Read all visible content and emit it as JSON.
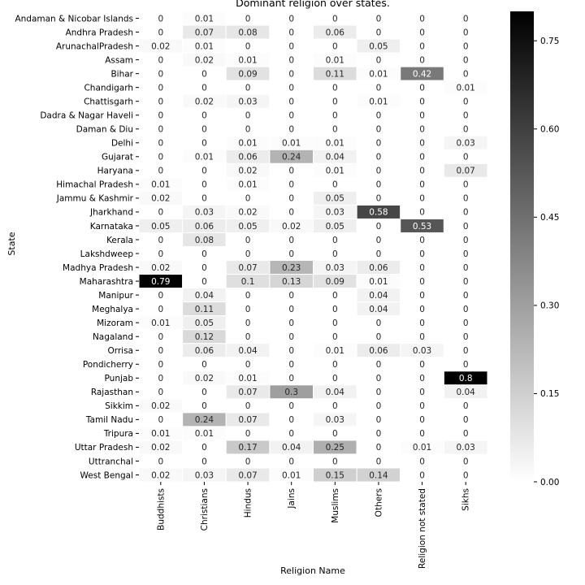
{
  "chart_data": {
    "type": "heatmap",
    "title": "Dominant religion over states.",
    "xlabel": "Religion Name",
    "ylabel": "State",
    "colorbar": {
      "min": 0.0,
      "max": 0.8,
      "ticks": [
        "0.00",
        "0.15",
        "0.30",
        "0.45",
        "0.60",
        "0.75"
      ],
      "tick_values": [
        0,
        0.15,
        0.3,
        0.45,
        0.6,
        0.75
      ],
      "colormap": "Greys (white to black)"
    },
    "columns": [
      "Buddhists",
      "Christians",
      "Hindus",
      "Jains",
      "Muslims",
      "Others",
      "Religion not stated",
      "Sikhs"
    ],
    "rows": [
      "Andaman & Nicobar Islands",
      "Andhra Pradesh",
      "ArunachalPradesh",
      "Assam",
      "Bihar",
      "Chandigarh",
      "Chattisgarh",
      "Dadra & Nagar Haveli",
      "Daman & Diu",
      "Delhi",
      "Gujarat",
      "Haryana",
      "Himachal Pradesh",
      "Jammu & Kashmir",
      "Jharkhand",
      "Karnataka",
      "Kerala",
      "Lakshdweep",
      "Madhya Pradesh",
      "Maharashtra",
      "Manipur",
      "Meghalya",
      "Mizoram",
      "Nagaland",
      "Orrisa",
      "Pondicherry",
      "Punjab",
      "Rajasthan",
      "Sikkim",
      "Tamil Nadu",
      "Tripura",
      "Uttar Pradesh",
      "Uttranchal",
      "West Bengal"
    ],
    "values": [
      [
        0,
        0.01,
        0,
        0,
        0,
        0,
        0,
        0
      ],
      [
        0,
        0.07,
        0.08,
        0,
        0.06,
        0,
        0,
        0
      ],
      [
        0.02,
        0.01,
        0,
        0,
        0,
        0.05,
        0,
        0
      ],
      [
        0,
        0.02,
        0.01,
        0,
        0.01,
        0,
        0,
        0
      ],
      [
        0,
        0,
        0.09,
        0,
        0.11,
        0.01,
        0.42,
        0
      ],
      [
        0,
        0,
        0,
        0,
        0,
        0,
        0,
        0.01
      ],
      [
        0,
        0.02,
        0.03,
        0,
        0,
        0.01,
        0,
        0
      ],
      [
        0,
        0,
        0,
        0,
        0,
        0,
        0,
        0
      ],
      [
        0,
        0,
        0,
        0,
        0,
        0,
        0,
        0
      ],
      [
        0,
        0,
        0.01,
        0.01,
        0.01,
        0,
        0,
        0.03
      ],
      [
        0,
        0.01,
        0.06,
        0.24,
        0.04,
        0,
        0,
        0
      ],
      [
        0,
        0,
        0.02,
        0,
        0.01,
        0,
        0,
        0.07
      ],
      [
        0.01,
        0,
        0.01,
        0,
        0,
        0,
        0,
        0
      ],
      [
        0.02,
        0,
        0,
        0,
        0.05,
        0,
        0,
        0
      ],
      [
        0,
        0.03,
        0.02,
        0,
        0.03,
        0.58,
        0,
        0
      ],
      [
        0.05,
        0.06,
        0.05,
        0.02,
        0.05,
        0,
        0.53,
        0
      ],
      [
        0,
        0.08,
        0,
        0,
        0,
        0,
        0,
        0
      ],
      [
        0,
        0,
        0,
        0,
        0,
        0,
        0,
        0
      ],
      [
        0.02,
        0,
        0.07,
        0.23,
        0.03,
        0.06,
        0,
        0
      ],
      [
        0.79,
        0,
        0.1,
        0.13,
        0.09,
        0.01,
        0,
        0
      ],
      [
        0,
        0.04,
        0,
        0,
        0,
        0.04,
        0,
        0
      ],
      [
        0,
        0.11,
        0,
        0,
        0,
        0.04,
        0,
        0
      ],
      [
        0.01,
        0.05,
        0,
        0,
        0,
        0,
        0,
        0
      ],
      [
        0,
        0.12,
        0,
        0,
        0,
        0,
        0,
        0
      ],
      [
        0,
        0.06,
        0.04,
        0,
        0.01,
        0.06,
        0.03,
        0
      ],
      [
        0,
        0,
        0,
        0,
        0,
        0,
        0,
        0
      ],
      [
        0,
        0.02,
        0.01,
        0,
        0,
        0,
        0,
        0.8
      ],
      [
        0,
        0,
        0.07,
        0.3,
        0.04,
        0,
        0,
        0.04
      ],
      [
        0.02,
        0,
        0,
        0,
        0,
        0,
        0,
        0
      ],
      [
        0,
        0.24,
        0.07,
        0,
        0.03,
        0,
        0,
        0
      ],
      [
        0.01,
        0.01,
        0,
        0,
        0,
        0,
        0,
        0
      ],
      [
        0.02,
        0,
        0.17,
        0.04,
        0.25,
        0,
        0.01,
        0.03
      ],
      [
        0,
        0,
        0,
        0,
        0,
        0,
        0,
        0
      ],
      [
        0.02,
        0.03,
        0.07,
        0.01,
        0.15,
        0.14,
        0,
        0
      ]
    ]
  }
}
